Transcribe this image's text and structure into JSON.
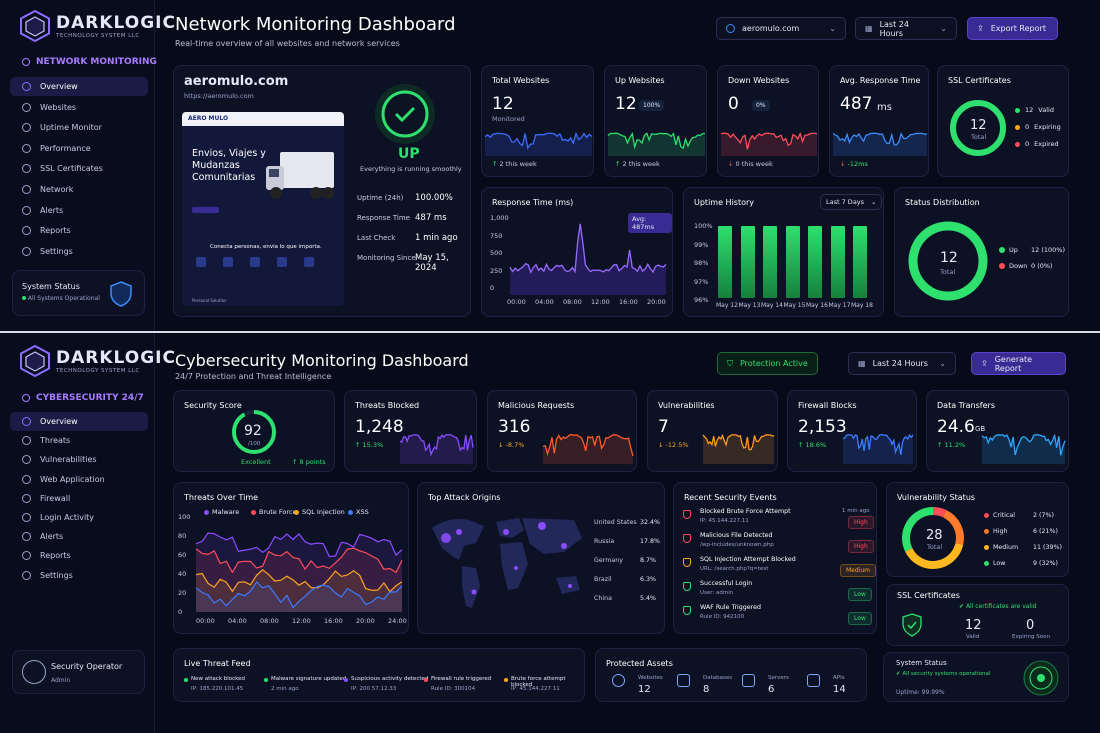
{
  "brand": {
    "name": "DARKLOGIC",
    "tagline": "TECHNOLOGY SYSTEM LLC"
  },
  "net": {
    "section": "NETWORK MONITORING",
    "nav": [
      "Overview",
      "Websites",
      "Uptime Monitor",
      "Performance",
      "SSL Certificates",
      "Network",
      "Alerts",
      "Reports",
      "Settings"
    ],
    "system_status": {
      "title": "System Status",
      "text": "All Systems Operational"
    },
    "title": "Network Monitoring Dashboard",
    "subtitle": "Real-time overview of all websites and network services",
    "site_select": "aeromulo.com",
    "range": "Last 24 Hours",
    "export": "Export Report",
    "site": {
      "name": "aeromulo.com",
      "url": "https://aeromulo.com",
      "status": "UP",
      "status_text": "Everything is running smoothly",
      "preview": {
        "logo": "AERO MULO",
        "headline": "Envios, Viajes y Mudanzas Comunitarias",
        "body": "Conecta personas, envia lo que importa.",
        "footer": "Personal Solution"
      },
      "stats": [
        {
          "label": "Uptime (24h)",
          "value": "100.00%"
        },
        {
          "label": "Response Time",
          "value": "487 ms"
        },
        {
          "label": "Last Check",
          "value": "1 min ago"
        },
        {
          "label": "Monitoring Since",
          "value": "May 15, 2024"
        }
      ]
    },
    "cards": [
      {
        "title": "Total Websites",
        "value": "12",
        "sub": "Monitored",
        "trend": "2 this week",
        "color": "#3b6cff",
        "dir": "up"
      },
      {
        "title": "Up Websites",
        "value": "12",
        "pill": "100%",
        "trend": "2 this week",
        "color": "#2ee06e",
        "dir": "up"
      },
      {
        "title": "Down Websites",
        "value": "0",
        "pill": "0%",
        "trend": "0 this week",
        "color": "#ff4d5a",
        "dir": "down"
      },
      {
        "title": "Avg. Response Time",
        "value": "487",
        "unit": "ms",
        "trend": "-12ms",
        "color": "#3b8cff",
        "dir": "down"
      }
    ],
    "ssl": {
      "title": "SSL Certificates",
      "total": "12",
      "total_label": "Total",
      "legend": [
        {
          "n": "12",
          "l": "Valid",
          "c": "#2ee06e"
        },
        {
          "n": "0",
          "l": "Expiring",
          "c": "#ffa51f"
        },
        {
          "n": "0",
          "l": "Expired",
          "c": "#ff4d5a"
        }
      ]
    },
    "response": {
      "title": "Response Time (ms)",
      "tag": "Avg: 487ms",
      "yticks": [
        "1,000",
        "750",
        "500",
        "250",
        "0"
      ],
      "xticks": [
        "00:00",
        "04:00",
        "08:00",
        "12:00",
        "16:00",
        "20:00"
      ]
    },
    "uptime": {
      "title": "Uptime History",
      "range": "Last 7 Days",
      "yticks": [
        "100%",
        "99%",
        "98%",
        "97%",
        "96%"
      ],
      "days": [
        "May 12",
        "May 13",
        "May 14",
        "May 15",
        "May 16",
        "May 17",
        "May 18"
      ]
    },
    "status_dist": {
      "title": "Status Distribution",
      "total": "12",
      "total_label": "Total",
      "legend": [
        {
          "l": "Up",
          "v": "12 (100%)",
          "c": "#2ee06e"
        },
        {
          "l": "Down",
          "v": "0 (0%)",
          "c": "#ff4d5a"
        }
      ]
    }
  },
  "sec": {
    "section": "CYBERSECURITY 24/7",
    "nav": [
      "Overview",
      "Threats",
      "Vulnerabilities",
      "Web Application",
      "Firewall",
      "Login Activity",
      "Alerts",
      "Reports",
      "Settings"
    ],
    "operator": {
      "name": "Security Operator",
      "role": "Admin"
    },
    "title": "Cybersecurity Monitoring Dashboard",
    "subtitle": "24/7 Protection and Threat Intelligence",
    "protection": "Protection Active",
    "range": "Last 24 Hours",
    "report": "Generate Report",
    "score": {
      "title": "Security Score",
      "value": "92",
      "max": "/100",
      "label": "Excellent",
      "change": "8 points"
    },
    "cards": [
      {
        "title": "Threats Blocked",
        "value": "1,248",
        "trend": "15.3%",
        "color": "#8a4dff",
        "dir": "up"
      },
      {
        "title": "Malicious Requests",
        "value": "316",
        "trend": "-8.7%",
        "color": "#ff5a2a",
        "dir": "down"
      },
      {
        "title": "Vulnerabilities",
        "value": "7",
        "trend": "-12.5%",
        "color": "#ff9a1f",
        "dir": "down"
      },
      {
        "title": "Firewall Blocks",
        "value": "2,153",
        "trend": "18.6%",
        "color": "#3b7cff",
        "dir": "up"
      },
      {
        "title": "Data Transfers",
        "value": "24.6",
        "unit": "GB",
        "trend": "11.2%",
        "color": "#2aa8ff",
        "dir": "up"
      }
    ],
    "threats_chart": {
      "title": "Threats Over Time",
      "legend": [
        {
          "l": "Malware",
          "c": "#8a4dff"
        },
        {
          "l": "Brute Force",
          "c": "#ff4d5a"
        },
        {
          "l": "SQL Injection",
          "c": "#ffa51f"
        },
        {
          "l": "XSS",
          "c": "#3b7cff"
        }
      ],
      "yticks": [
        "100",
        "80",
        "60",
        "40",
        "20",
        "0"
      ],
      "xticks": [
        "00:00",
        "04:00",
        "08:00",
        "12:00",
        "16:00",
        "20:00",
        "24:00"
      ]
    },
    "origins": {
      "title": "Top Attack Origins",
      "rows": [
        {
          "c": "United States",
          "v": "32.4%"
        },
        {
          "c": "Russia",
          "v": "17.8%"
        },
        {
          "c": "Germany",
          "v": "8.7%"
        },
        {
          "c": "Brazil",
          "v": "6.3%"
        },
        {
          "c": "China",
          "v": "5.4%"
        }
      ]
    },
    "events": {
      "title": "Recent Security Events",
      "items": [
        {
          "t": "Blocked Brute Force Attempt",
          "d": "IP: 45.144.227.11",
          "time": "1 min ago",
          "sev": "High",
          "c": "#ff4d5a"
        },
        {
          "t": "Malicious File Detected",
          "d": "/wp-includes/unknown.php",
          "time": "",
          "sev": "High",
          "c": "#ff4d5a"
        },
        {
          "t": "SQL Injection Attempt Blocked",
          "d": "URL: /search.php?q=test",
          "time": "",
          "sev": "Medium",
          "c": "#ffa51f"
        },
        {
          "t": "Successful Login",
          "d": "User: admin",
          "time": "",
          "sev": "Low",
          "c": "#2ee06e"
        },
        {
          "t": "WAF Rule Triggered",
          "d": "Rule ID: 942100",
          "time": "",
          "sev": "Low",
          "c": "#2ee06e"
        }
      ]
    },
    "vuln": {
      "title": "Vulnerability Status",
      "total": "28",
      "total_label": "Total",
      "legend": [
        {
          "l": "Critical",
          "v": "2 (7%)",
          "c": "#ff4d5a"
        },
        {
          "l": "High",
          "v": "6 (21%)",
          "c": "#ff7a2a"
        },
        {
          "l": "Medium",
          "v": "11 (39%)",
          "c": "#ffb81f"
        },
        {
          "l": "Low",
          "v": "9 (32%)",
          "c": "#2ee06e"
        }
      ]
    },
    "ssl": {
      "title": "SSL Certificates",
      "note": "All certificates are valid",
      "valid": "12",
      "valid_label": "Valid",
      "expiring": "0",
      "expiring_label": "Expiring Soon"
    },
    "feed": {
      "title": "Live Threat Feed",
      "items": [
        {
          "t": "New attack blocked",
          "d": "IP: 185.220.101.45",
          "c": "#2ee06e"
        },
        {
          "t": "Malware signature updated",
          "d": "2 min ago",
          "c": "#2ee06e"
        },
        {
          "t": "Suspicious activity detected",
          "d": "IP: 200.57.12.33",
          "c": "#8a4dff"
        },
        {
          "t": "Firewall rule triggered",
          "d": "Rule ID: 300104",
          "c": "#ff4d5a"
        },
        {
          "t": "Brute force attempt blocked",
          "d": "IP: 45.144.227.11",
          "c": "#ffa51f"
        }
      ]
    },
    "assets": {
      "title": "Protected Assets",
      "items": [
        {
          "l": "Websites",
          "v": "12"
        },
        {
          "l": "Databases",
          "v": "8"
        },
        {
          "l": "Servers",
          "v": "6"
        },
        {
          "l": "APIs",
          "v": "14"
        }
      ]
    },
    "system": {
      "title": "System Status",
      "note": "All security systems operational",
      "uptime": "Uptime: 99.99%"
    }
  }
}
